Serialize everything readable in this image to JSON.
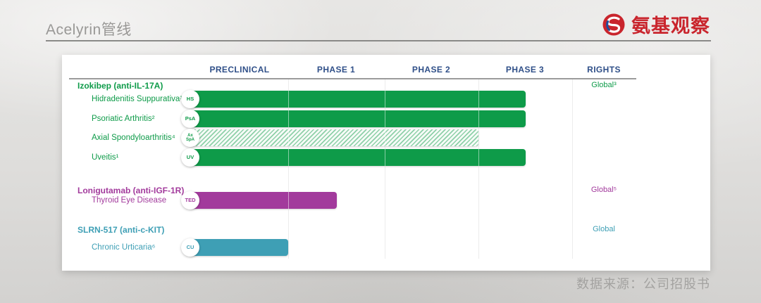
{
  "page": {
    "title": "Acelyrin管线",
    "source_note": "数据来源：公司招股书"
  },
  "logo": {
    "text": "氨基观察",
    "icon": "swirl-drop-icon",
    "color": "#c9252d",
    "icon_accent_blue": "#1d4f9e"
  },
  "colors": {
    "header_navy": "#2f4f88",
    "grid_gray": "#d8d8d8",
    "rule_gray": "#9b9b9b",
    "card_bg": "#ffffff"
  },
  "chart_data": {
    "type": "bar",
    "variant": "clinical-pipeline-gantt",
    "title": "Acelyrin管线",
    "columns": [
      "PRECLINICAL",
      "PHASE 1",
      "PHASE 2",
      "PHASE 3",
      "RIGHTS"
    ],
    "scale_note": "bar_end is measured in columns completed: 1 = end of PRECLINICAL, 1.5 = mid PHASE 1, 3 = end of PHASE 2, 3.5 = mid PHASE 3",
    "grid": "vertical-column-separators",
    "legend": false,
    "groups": [
      {
        "name": "Izokibep (anti-IL-17A)",
        "color": "#0e9b49",
        "rights": "Global³",
        "programs": [
          {
            "indication": "Hidradenitis Suppurativa¹",
            "badge": "HS",
            "bar_end": 3.5,
            "bar_style": "solid"
          },
          {
            "indication": "Psoriatic Arthritis²",
            "badge": "PsA",
            "bar_end": 3.5,
            "bar_style": "solid"
          },
          {
            "indication": "Axial Spondyloarthritis⁴",
            "badge": "Ax SpA",
            "bar_end": 3.0,
            "bar_style": "hatched"
          },
          {
            "indication": "Uveitis¹",
            "badge": "UV",
            "bar_end": 3.5,
            "bar_style": "solid"
          }
        ]
      },
      {
        "name": "Lonigutamab (anti-IGF-1R)",
        "color": "#a23a9c",
        "rights": "Global⁵",
        "programs": [
          {
            "indication": "Thyroid Eye Disease",
            "badge": "TED",
            "bar_end": 1.5,
            "bar_style": "solid"
          }
        ]
      },
      {
        "name": "SLRN-517 (anti-c-KIT)",
        "color": "#3e9fb5",
        "rights": "Global",
        "programs": [
          {
            "indication": "Chronic Urticaria⁶",
            "badge": "CU",
            "bar_end": 1.0,
            "bar_style": "solid"
          }
        ]
      }
    ]
  }
}
